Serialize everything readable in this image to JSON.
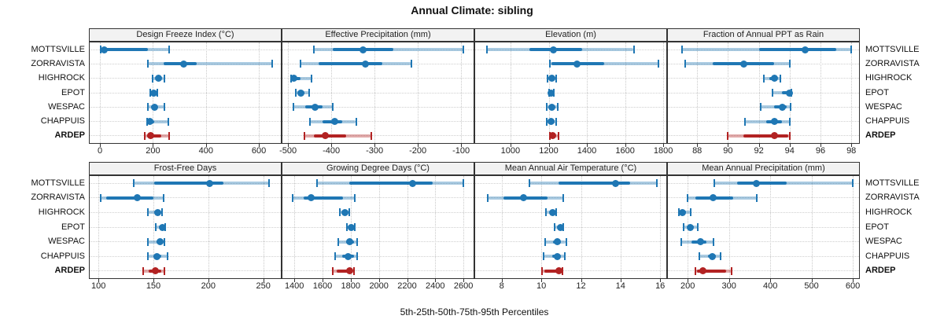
{
  "title": "Annual Climate: sibling",
  "caption": "5th-25th-50th-75th-95th Percentiles",
  "sites": [
    "MOTTSVILLE",
    "ZORRAVISTA",
    "HIGHROCK",
    "EPOT",
    "WESPAC",
    "CHAPPUIS",
    "ARDEP"
  ],
  "highlight_site": "ARDEP",
  "colors": {
    "series": "#1f77b4",
    "series_band": "rgba(31,119,180,0.38)",
    "highlight": "#b22222",
    "highlight_band": "rgba(178,34,34,0.38)",
    "strip_bg": "#f2f2f2",
    "grid": "#c9c9c9"
  },
  "chart_data": {
    "type": "dot-interval-trellis",
    "title": "Annual Climate: sibling",
    "xlabel": "5th-25th-50th-75th-95th Percentiles",
    "percentiles": [
      5,
      25,
      50,
      75,
      95
    ],
    "grid": "dotted",
    "panels": [
      {
        "title": "Design Freeze Index (°C)",
        "ticks": [
          0,
          200,
          400,
          600
        ],
        "xlim": [
          -39,
          683
        ],
        "values": {
          "MOTTSVILLE": [
            3,
            10,
            15,
            180,
            260
          ],
          "ZORRAVISTA": [
            180,
            240,
            315,
            365,
            650
          ],
          "HIGHROCK": [
            200,
            212,
            220,
            228,
            242
          ],
          "EPOT": [
            190,
            198,
            203,
            209,
            217
          ],
          "WESPAC": [
            180,
            194,
            205,
            216,
            243
          ],
          "CHAPPUIS": [
            177,
            183,
            189,
            206,
            258
          ],
          "ARDEP": [
            168,
            179,
            191,
            230,
            262
          ]
        }
      },
      {
        "title": "Effective Precipitation (mm)",
        "ticks": [
          -500,
          -400,
          -300,
          -200,
          -100
        ],
        "xlim": [
          -513,
          -71
        ],
        "values": {
          "MOTTSVILLE": [
            -441,
            -396,
            -327,
            -256,
            -95
          ],
          "ZORRAVISTA": [
            -471,
            -430,
            -322,
            -281,
            -215
          ],
          "HIGHROCK": [
            -493,
            -490,
            -487,
            -471,
            -445
          ],
          "EPOT": [
            -483,
            -476,
            -470,
            -462,
            -452
          ],
          "WESPAC": [
            -488,
            -461,
            -437,
            -420,
            -397
          ],
          "CHAPPUIS": [
            -449,
            -420,
            -393,
            -374,
            -343
          ],
          "ARDEP": [
            -463,
            -440,
            -414,
            -366,
            -308
          ]
        }
      },
      {
        "title": "Elevation (m)",
        "ticks": [
          1000,
          1200,
          1400,
          1600,
          1800
        ],
        "xlim": [
          815,
          1816
        ],
        "values": {
          "MOTTSVILLE": [
            875,
            1100,
            1225,
            1375,
            1645
          ],
          "ZORRAVISTA": [
            1207,
            1215,
            1350,
            1490,
            1775
          ],
          "HIGHROCK": [
            1195,
            1207,
            1216,
            1226,
            1240
          ],
          "EPOT": [
            1200,
            1206,
            1212,
            1218,
            1226
          ],
          "WESPAC": [
            1190,
            1205,
            1216,
            1228,
            1247
          ],
          "CHAPPUIS": [
            1190,
            1202,
            1212,
            1222,
            1240
          ],
          "ARDEP": [
            1206,
            1212,
            1221,
            1235,
            1251
          ]
        }
      },
      {
        "title": "Fraction of Annual PPT as Rain",
        "ticks": [
          88,
          90,
          92,
          94,
          96,
          98
        ],
        "xlim": [
          86.1,
          98.5
        ],
        "values": {
          "MOTTSVILLE": [
            87,
            92,
            95,
            97,
            98
          ],
          "ZORRAVISTA": [
            87.2,
            89,
            91,
            93,
            94
          ],
          "HIGHROCK": [
            92.3,
            92.7,
            93,
            93.2,
            93.4
          ],
          "EPOT": [
            92.9,
            93.5,
            94,
            94.05,
            94.1
          ],
          "WESPAC": [
            92.1,
            93,
            93.5,
            93.8,
            94.05
          ],
          "CHAPPUIS": [
            91.1,
            92.5,
            93,
            93.5,
            94
          ],
          "ARDEP": [
            90,
            91,
            93,
            93.9,
            94
          ]
        }
      },
      {
        "title": "Frost-Free Days",
        "ticks": [
          100,
          150,
          200,
          250
        ],
        "xlim": [
          92,
          266
        ],
        "values": {
          "MOTTSVILLE": [
            132,
            151,
            201,
            214,
            255
          ],
          "ZORRAVISTA": [
            102,
            107,
            135,
            150,
            159
          ],
          "HIGHROCK": [
            145,
            151,
            154,
            156,
            158
          ],
          "EPOT": [
            152,
            155,
            158,
            160,
            161
          ],
          "WESPAC": [
            145,
            153,
            156,
            158,
            160
          ],
          "CHAPPUIS": [
            145,
            150,
            153,
            157,
            163
          ],
          "ARDEP": [
            141,
            146,
            152,
            157,
            160
          ]
        }
      },
      {
        "title": "Growing Degree Days (°C)",
        "ticks": [
          1400,
          1600,
          1800,
          2000,
          2200,
          2400,
          2600
        ],
        "xlim": [
          1315,
          2672
        ],
        "values": {
          "MOTTSVILLE": [
            1560,
            1790,
            2240,
            2380,
            2600
          ],
          "ZORRAVISTA": [
            1390,
            1465,
            1520,
            1745,
            1830
          ],
          "HIGHROCK": [
            1720,
            1742,
            1757,
            1772,
            1788
          ],
          "EPOT": [
            1770,
            1790,
            1805,
            1820,
            1830
          ],
          "WESPAC": [
            1710,
            1765,
            1792,
            1822,
            1847
          ],
          "CHAPPUIS": [
            1690,
            1740,
            1780,
            1825,
            1845
          ],
          "ARDEP": [
            1672,
            1700,
            1790,
            1812,
            1825
          ]
        }
      },
      {
        "title": "Mean Annual Air Temperature (°C)",
        "ticks": [
          8,
          10,
          12,
          14,
          16
        ],
        "xlim": [
          6.66,
          16.31
        ],
        "values": {
          "MOTTSVILLE": [
            9.4,
            10.85,
            13.75,
            14.5,
            15.85
          ],
          "ZORRAVISTA": [
            7.3,
            8.1,
            9.1,
            10.3,
            11.1
          ],
          "HIGHROCK": [
            10.25,
            10.45,
            10.58,
            10.68,
            10.75
          ],
          "EPOT": [
            10.65,
            10.82,
            10.95,
            11.02,
            11.1
          ],
          "WESPAC": [
            10.2,
            10.6,
            10.8,
            11.0,
            11.25
          ],
          "CHAPPUIS": [
            10.1,
            10.55,
            10.8,
            11.0,
            11.2
          ],
          "ARDEP": [
            10.05,
            10.15,
            10.9,
            11.0,
            11.05
          ]
        }
      },
      {
        "title": "Mean Annual Precipitation (mm)",
        "ticks": [
          200,
          300,
          400,
          500,
          600
        ],
        "xlim": [
          152,
          615
        ],
        "values": {
          "MOTTSVILLE": [
            265,
            320,
            366,
            440,
            600
          ],
          "ZORRAVISTA": [
            200,
            218,
            261,
            310,
            368
          ],
          "HIGHROCK": [
            178,
            182,
            187,
            196,
            207
          ],
          "EPOT": [
            190,
            199,
            207,
            215,
            225
          ],
          "WESPAC": [
            184,
            210,
            231,
            245,
            263
          ],
          "CHAPPUIS": [
            229,
            250,
            260,
            268,
            279
          ],
          "ARDEP": [
            218,
            222,
            236,
            293,
            307
          ]
        }
      }
    ]
  }
}
